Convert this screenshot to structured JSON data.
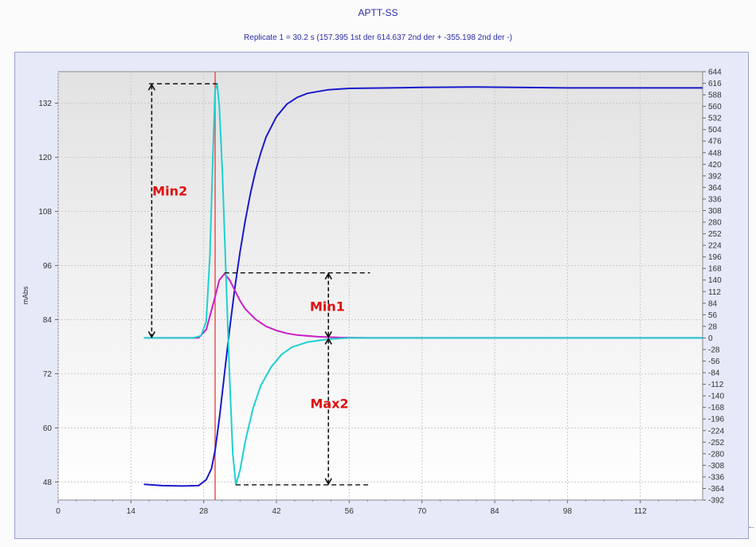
{
  "chart_data": {
    "type": "line",
    "title": "APTT-SS",
    "subtitle": "Replicate 1 = 30.2 s    (157.395 1st der   614.637 2nd der +   -355.198 2nd der -)",
    "ylabel": "mAbs",
    "xlabel": "",
    "xlim": [
      0,
      124
    ],
    "ylim": [
      44,
      139
    ],
    "y2lim": [
      -392,
      644
    ],
    "x_ticks": [
      0,
      14,
      28,
      42,
      56,
      70,
      84,
      98,
      112
    ],
    "y_ticks": [
      48,
      60,
      72,
      84,
      96,
      108,
      120,
      132
    ],
    "y2_ticks": [
      -392,
      -364,
      -336,
      -308,
      -280,
      -252,
      -224,
      -196,
      -168,
      -140,
      -112,
      -84,
      -56,
      -28,
      0,
      28,
      56,
      84,
      112,
      140,
      168,
      196,
      224,
      252,
      280,
      308,
      336,
      364,
      392,
      420,
      448,
      476,
      504,
      532,
      560,
      588,
      616,
      644
    ],
    "grid": true,
    "marker_x": 30.2,
    "series": [
      {
        "color": "#1a1acc",
        "axis": "left",
        "points": [
          [
            16.5,
            47.5
          ],
          [
            20,
            47.2
          ],
          [
            24,
            47.1
          ],
          [
            27,
            47.2
          ],
          [
            28.5,
            48.5
          ],
          [
            29.5,
            51
          ],
          [
            30.2,
            55
          ],
          [
            31,
            62
          ],
          [
            32,
            72
          ],
          [
            33,
            82
          ],
          [
            34,
            91
          ],
          [
            35,
            99
          ],
          [
            36,
            106
          ],
          [
            37,
            112
          ],
          [
            38,
            117
          ],
          [
            39,
            121
          ],
          [
            40,
            124.5
          ],
          [
            42,
            129
          ],
          [
            44,
            131.8
          ],
          [
            46,
            133.3
          ],
          [
            48,
            134.2
          ],
          [
            52,
            135
          ],
          [
            56,
            135.3
          ],
          [
            70,
            135.5
          ],
          [
            80,
            135.6
          ],
          [
            98,
            135.4
          ],
          [
            124,
            135.4
          ]
        ]
      },
      {
        "color": "#c81fc8",
        "axis": "right",
        "points": [
          [
            16.5,
            0
          ],
          [
            27,
            0
          ],
          [
            28.5,
            20
          ],
          [
            30,
            90
          ],
          [
            31,
            140
          ],
          [
            32,
            155
          ],
          [
            33,
            140
          ],
          [
            34,
            115
          ],
          [
            35,
            90
          ],
          [
            36,
            70
          ],
          [
            38,
            45
          ],
          [
            40,
            28
          ],
          [
            42,
            18
          ],
          [
            44,
            11
          ],
          [
            46,
            7
          ],
          [
            50,
            3
          ],
          [
            54,
            1
          ],
          [
            60,
            0
          ],
          [
            124,
            0
          ]
        ]
      },
      {
        "color": "#1fd0d0",
        "axis": "right",
        "points": [
          [
            16.5,
            0
          ],
          [
            26,
            0
          ],
          [
            27.5,
            5
          ],
          [
            28.5,
            40
          ],
          [
            29.2,
            200
          ],
          [
            29.8,
            450
          ],
          [
            30.2,
            600
          ],
          [
            30.6,
            614
          ],
          [
            31,
            560
          ],
          [
            31.6,
            400
          ],
          [
            32.3,
            150
          ],
          [
            33,
            -100
          ],
          [
            33.6,
            -280
          ],
          [
            34.2,
            -355
          ],
          [
            35,
            -320
          ],
          [
            36,
            -250
          ],
          [
            37.5,
            -170
          ],
          [
            39,
            -115
          ],
          [
            41,
            -70
          ],
          [
            43,
            -40
          ],
          [
            45,
            -22
          ],
          [
            48,
            -10
          ],
          [
            52,
            -3
          ],
          [
            56,
            0
          ],
          [
            124,
            0
          ]
        ]
      }
    ],
    "annotations": [
      "Min2",
      "Min1",
      "Max2"
    ],
    "dashed_guides": [
      {
        "x": [
          17.5,
          30.6
        ],
        "y2": 614.637
      },
      {
        "x": [
          32,
          60
        ],
        "y2": 157.395
      },
      {
        "x": [
          34.2,
          60
        ],
        "y2": -355.198
      }
    ],
    "double_arrows": [
      {
        "x": 18,
        "y2": [
          0,
          614.637
        ],
        "label": "Min2"
      },
      {
        "x": 52,
        "y2": [
          0,
          157.395
        ],
        "label": "Min1"
      },
      {
        "x": 52,
        "y2": [
          -355.198,
          0
        ],
        "label": "Max2"
      }
    ]
  }
}
